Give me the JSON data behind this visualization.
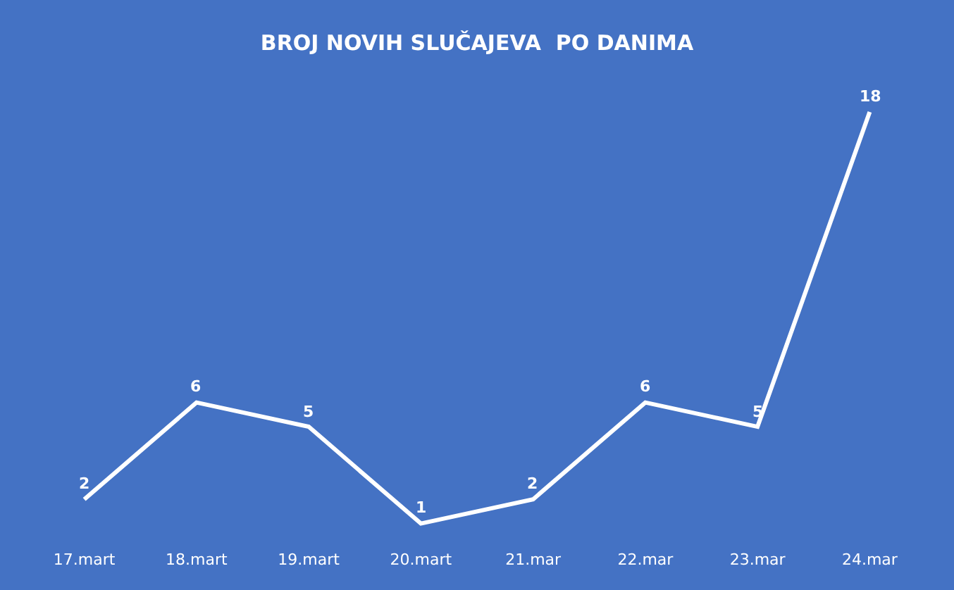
{
  "chart_data": {
    "type": "line",
    "title": "BROJ NOVIH SLUČAJEVA  PO DANIMA",
    "categories": [
      "17.mart",
      "18.mart",
      "19.mart",
      "20.mart",
      "21.mar",
      "22.mar",
      "23.mar",
      "24.mar"
    ],
    "series": [
      {
        "color": "#ffffff",
        "values": [
          2,
          6,
          5,
          1,
          2,
          6,
          5,
          18
        ]
      }
    ],
    "data_labels": true,
    "grid": false,
    "line_style": "solid"
  }
}
